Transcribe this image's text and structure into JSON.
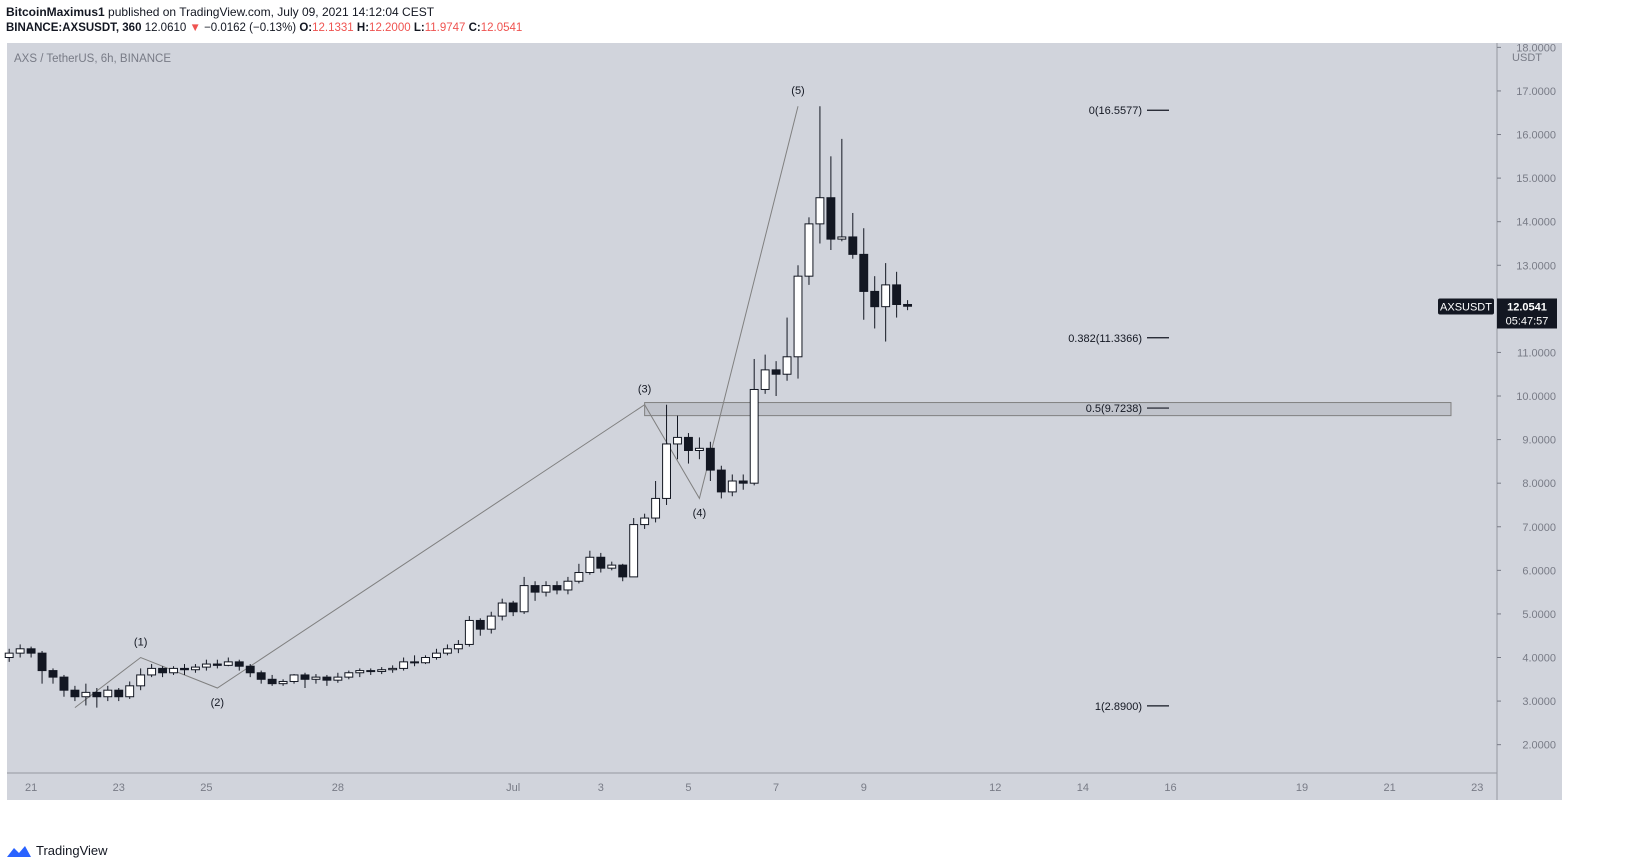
{
  "header": {
    "author": "BitcoinMaximus1",
    "published": "published on TradingView.com, July 09, 2021 14:12:04 CEST",
    "symbol_line": "BINANCE:AXSUSDT, 360",
    "last": "12.0610",
    "change": "−0.0162 (−0.13%)",
    "open_label": "O:",
    "open": "12.1331",
    "high_label": "H:",
    "high": "12.2000",
    "low_label": "L:",
    "low": "11.9747",
    "close_label": "C:",
    "close": "12.0541"
  },
  "footer": {
    "brand": "TradingView"
  },
  "colors": {
    "background": "#d1d4dc",
    "page": "#ffffff",
    "candle_up": "#ffffff",
    "candle_down": "#131722",
    "line": "#808080"
  },
  "chart_data": {
    "type": "candlestick",
    "title": "AXS / TetherUS, 6h, BINANCE",
    "currency": "USDT",
    "ylim": [
      1.35,
      18.1
    ],
    "y_ticks": [
      "2.0000",
      "3.0000",
      "4.0000",
      "5.0000",
      "6.0000",
      "7.0000",
      "8.0000",
      "9.0000",
      "10.0000",
      "11.0000",
      "12.0000",
      "13.0000",
      "14.0000",
      "15.0000",
      "16.0000",
      "17.0000",
      "18.0000"
    ],
    "x_ticks": [
      {
        "label": "21",
        "day": -10
      },
      {
        "label": "23",
        "day": -8
      },
      {
        "label": "25",
        "day": -6
      },
      {
        "label": "28",
        "day": -3
      },
      {
        "label": "Jul",
        "day": 1
      },
      {
        "label": "3",
        "day": 3
      },
      {
        "label": "5",
        "day": 5
      },
      {
        "label": "7",
        "day": 7
      },
      {
        "label": "9",
        "day": 9
      },
      {
        "label": "12",
        "day": 12
      },
      {
        "label": "14",
        "day": 14
      },
      {
        "label": "16",
        "day": 16
      },
      {
        "label": "19",
        "day": 19
      },
      {
        "label": "21",
        "day": 21
      },
      {
        "label": "23",
        "day": 23
      }
    ],
    "xlim_days": [
      -10.55,
      23.45
    ],
    "candle_days_per_bar": 0.25,
    "first_candle_day": -10.5,
    "candles": [
      [
        4.0,
        4.1,
        4.2,
        3.9
      ],
      [
        4.1,
        4.2,
        4.3,
        4.0
      ],
      [
        4.2,
        4.1,
        4.25,
        4.0
      ],
      [
        4.1,
        3.7,
        4.15,
        3.4
      ],
      [
        3.7,
        3.55,
        3.75,
        3.4
      ],
      [
        3.55,
        3.25,
        3.6,
        3.1
      ],
      [
        3.25,
        3.1,
        3.35,
        3.0
      ],
      [
        3.1,
        3.2,
        3.4,
        2.9
      ],
      [
        3.2,
        3.1,
        3.3,
        2.85
      ],
      [
        3.1,
        3.25,
        3.35,
        3.0
      ],
      [
        3.25,
        3.1,
        3.3,
        3.0
      ],
      [
        3.1,
        3.35,
        3.45,
        3.05
      ],
      [
        3.35,
        3.6,
        3.75,
        3.25
      ],
      [
        3.6,
        3.75,
        3.85,
        3.55
      ],
      [
        3.75,
        3.65,
        3.8,
        3.55
      ],
      [
        3.65,
        3.75,
        3.8,
        3.6
      ],
      [
        3.75,
        3.72,
        3.85,
        3.6
      ],
      [
        3.72,
        3.78,
        3.85,
        3.65
      ],
      [
        3.78,
        3.85,
        3.95,
        3.7
      ],
      [
        3.85,
        3.82,
        3.95,
        3.75
      ],
      [
        3.82,
        3.9,
        4.0,
        3.8
      ],
      [
        3.9,
        3.8,
        3.95,
        3.7
      ],
      [
        3.8,
        3.65,
        3.85,
        3.55
      ],
      [
        3.65,
        3.5,
        3.7,
        3.4
      ],
      [
        3.5,
        3.4,
        3.6,
        3.35
      ],
      [
        3.4,
        3.45,
        3.5,
        3.35
      ],
      [
        3.45,
        3.6,
        3.62,
        3.4
      ],
      [
        3.6,
        3.5,
        3.65,
        3.3
      ],
      [
        3.5,
        3.55,
        3.62,
        3.4
      ],
      [
        3.55,
        3.48,
        3.6,
        3.35
      ],
      [
        3.48,
        3.55,
        3.65,
        3.42
      ],
      [
        3.55,
        3.65,
        3.7,
        3.5
      ],
      [
        3.65,
        3.7,
        3.75,
        3.55
      ],
      [
        3.7,
        3.68,
        3.75,
        3.6
      ],
      [
        3.68,
        3.72,
        3.78,
        3.62
      ],
      [
        3.72,
        3.75,
        3.82,
        3.65
      ],
      [
        3.75,
        3.9,
        4.0,
        3.7
      ],
      [
        3.9,
        3.88,
        4.05,
        3.8
      ],
      [
        3.88,
        4.0,
        4.05,
        3.85
      ],
      [
        4.0,
        4.1,
        4.2,
        3.95
      ],
      [
        4.1,
        4.2,
        4.3,
        4.05
      ],
      [
        4.2,
        4.3,
        4.4,
        4.1
      ],
      [
        4.3,
        4.85,
        4.95,
        4.25
      ],
      [
        4.85,
        4.65,
        4.9,
        4.5
      ],
      [
        4.65,
        4.95,
        5.05,
        4.55
      ],
      [
        4.95,
        5.25,
        5.35,
        4.85
      ],
      [
        5.25,
        5.05,
        5.3,
        4.95
      ],
      [
        5.05,
        5.65,
        5.85,
        5.0
      ],
      [
        5.65,
        5.5,
        5.75,
        5.3
      ],
      [
        5.5,
        5.65,
        5.75,
        5.4
      ],
      [
        5.65,
        5.55,
        5.75,
        5.45
      ],
      [
        5.55,
        5.75,
        5.85,
        5.45
      ],
      [
        5.75,
        5.95,
        6.15,
        5.7
      ],
      [
        5.95,
        6.3,
        6.45,
        5.9
      ],
      [
        6.3,
        6.05,
        6.4,
        5.95
      ],
      [
        6.05,
        6.12,
        6.2,
        6.0
      ],
      [
        6.12,
        5.85,
        6.15,
        5.75
      ],
      [
        5.85,
        7.05,
        7.2,
        5.85
      ],
      [
        7.05,
        7.2,
        7.3,
        6.95
      ],
      [
        7.2,
        7.65,
        8.05,
        7.1
      ],
      [
        7.65,
        8.9,
        9.8,
        7.5
      ],
      [
        8.9,
        9.05,
        9.55,
        8.55
      ],
      [
        9.05,
        8.75,
        9.15,
        8.45
      ],
      [
        8.75,
        8.8,
        9.05,
        8.55
      ],
      [
        8.8,
        8.3,
        8.95,
        8.05
      ],
      [
        8.3,
        7.8,
        8.4,
        7.65
      ],
      [
        7.8,
        8.05,
        8.2,
        7.7
      ],
      [
        8.05,
        8.0,
        8.2,
        7.85
      ],
      [
        8.0,
        10.15,
        10.85,
        7.95
      ],
      [
        10.15,
        10.6,
        10.95,
        10.05
      ],
      [
        10.6,
        10.5,
        10.8,
        10.0
      ],
      [
        10.5,
        10.9,
        11.8,
        10.35
      ],
      [
        10.9,
        12.75,
        13.0,
        10.4
      ],
      [
        12.75,
        13.95,
        14.1,
        12.55
      ],
      [
        13.95,
        14.55,
        16.65,
        13.5
      ],
      [
        14.55,
        13.6,
        15.5,
        13.35
      ],
      [
        13.6,
        13.65,
        15.9,
        13.55
      ],
      [
        13.65,
        13.25,
        14.2,
        13.15
      ],
      [
        13.25,
        12.4,
        13.85,
        11.75
      ],
      [
        12.4,
        12.05,
        12.75,
        11.55
      ],
      [
        12.05,
        12.55,
        13.05,
        11.25
      ],
      [
        12.55,
        12.1,
        12.85,
        11.8
      ],
      [
        12.1,
        12.06,
        12.2,
        11.97
      ]
    ],
    "waves": [
      {
        "label": "(1)",
        "day": -7.5,
        "value": 4.0,
        "pos": "above"
      },
      {
        "label": "(2)",
        "day": -5.75,
        "value": 3.3,
        "pos": "below"
      },
      {
        "label": "(3)",
        "day": 4.0,
        "value": 9.8,
        "pos": "above"
      },
      {
        "label": "(4)",
        "day": 5.25,
        "value": 7.65,
        "pos": "below"
      },
      {
        "label": "(5)",
        "day": 7.5,
        "value": 16.65,
        "pos": "above"
      }
    ],
    "wave_line": [
      [
        -9.0,
        2.85
      ],
      [
        -7.5,
        4.0
      ],
      [
        -5.75,
        3.3
      ],
      [
        4.0,
        9.8
      ],
      [
        5.25,
        7.65
      ],
      [
        7.5,
        16.65
      ]
    ],
    "fib_levels": [
      {
        "label": "0(16.5577)",
        "value": 16.5577
      },
      {
        "label": "0.382(11.3366)",
        "value": 11.3366
      },
      {
        "label": "0.5(9.7238)",
        "value": 9.7238
      },
      {
        "label": "1(2.8900)",
        "value": 2.89
      }
    ],
    "zone": {
      "from_day": 4.0,
      "to_day": 22.4,
      "low": 9.55,
      "high": 9.85
    },
    "price_label": {
      "symbol": "AXSUSDT",
      "value": "12.0541",
      "countdown": "05:47:57",
      "level": 12.0541
    }
  }
}
